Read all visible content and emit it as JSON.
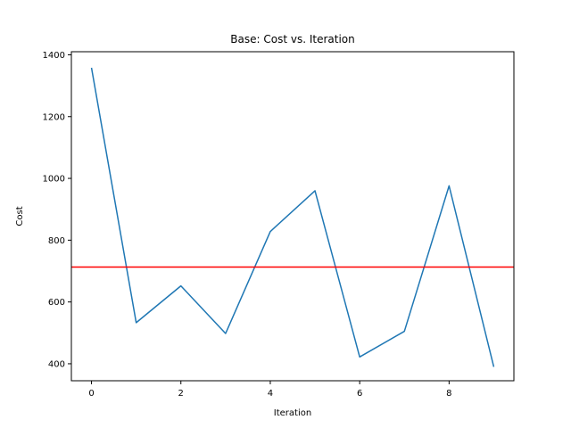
{
  "chart_data": {
    "type": "line",
    "title": "Base: Cost vs. Iteration",
    "xlabel": "Iteration",
    "ylabel": "Cost",
    "xlim": [
      -0.45,
      9.45
    ],
    "ylim": [
      345,
      1410
    ],
    "x_ticks": [
      0,
      2,
      4,
      6,
      8
    ],
    "y_ticks": [
      400,
      600,
      800,
      1000,
      1200,
      1400
    ],
    "grid": false,
    "legend": "none",
    "series": [
      {
        "color": "#1f77b4",
        "x": [
          0,
          1,
          2,
          3,
          4,
          5,
          6,
          7,
          8,
          9
        ],
        "values": [
          1358,
          533,
          652,
          498,
          828,
          960,
          422,
          505,
          976,
          390
        ]
      }
    ],
    "hline": {
      "y": 713,
      "color": "#ff0000"
    }
  }
}
